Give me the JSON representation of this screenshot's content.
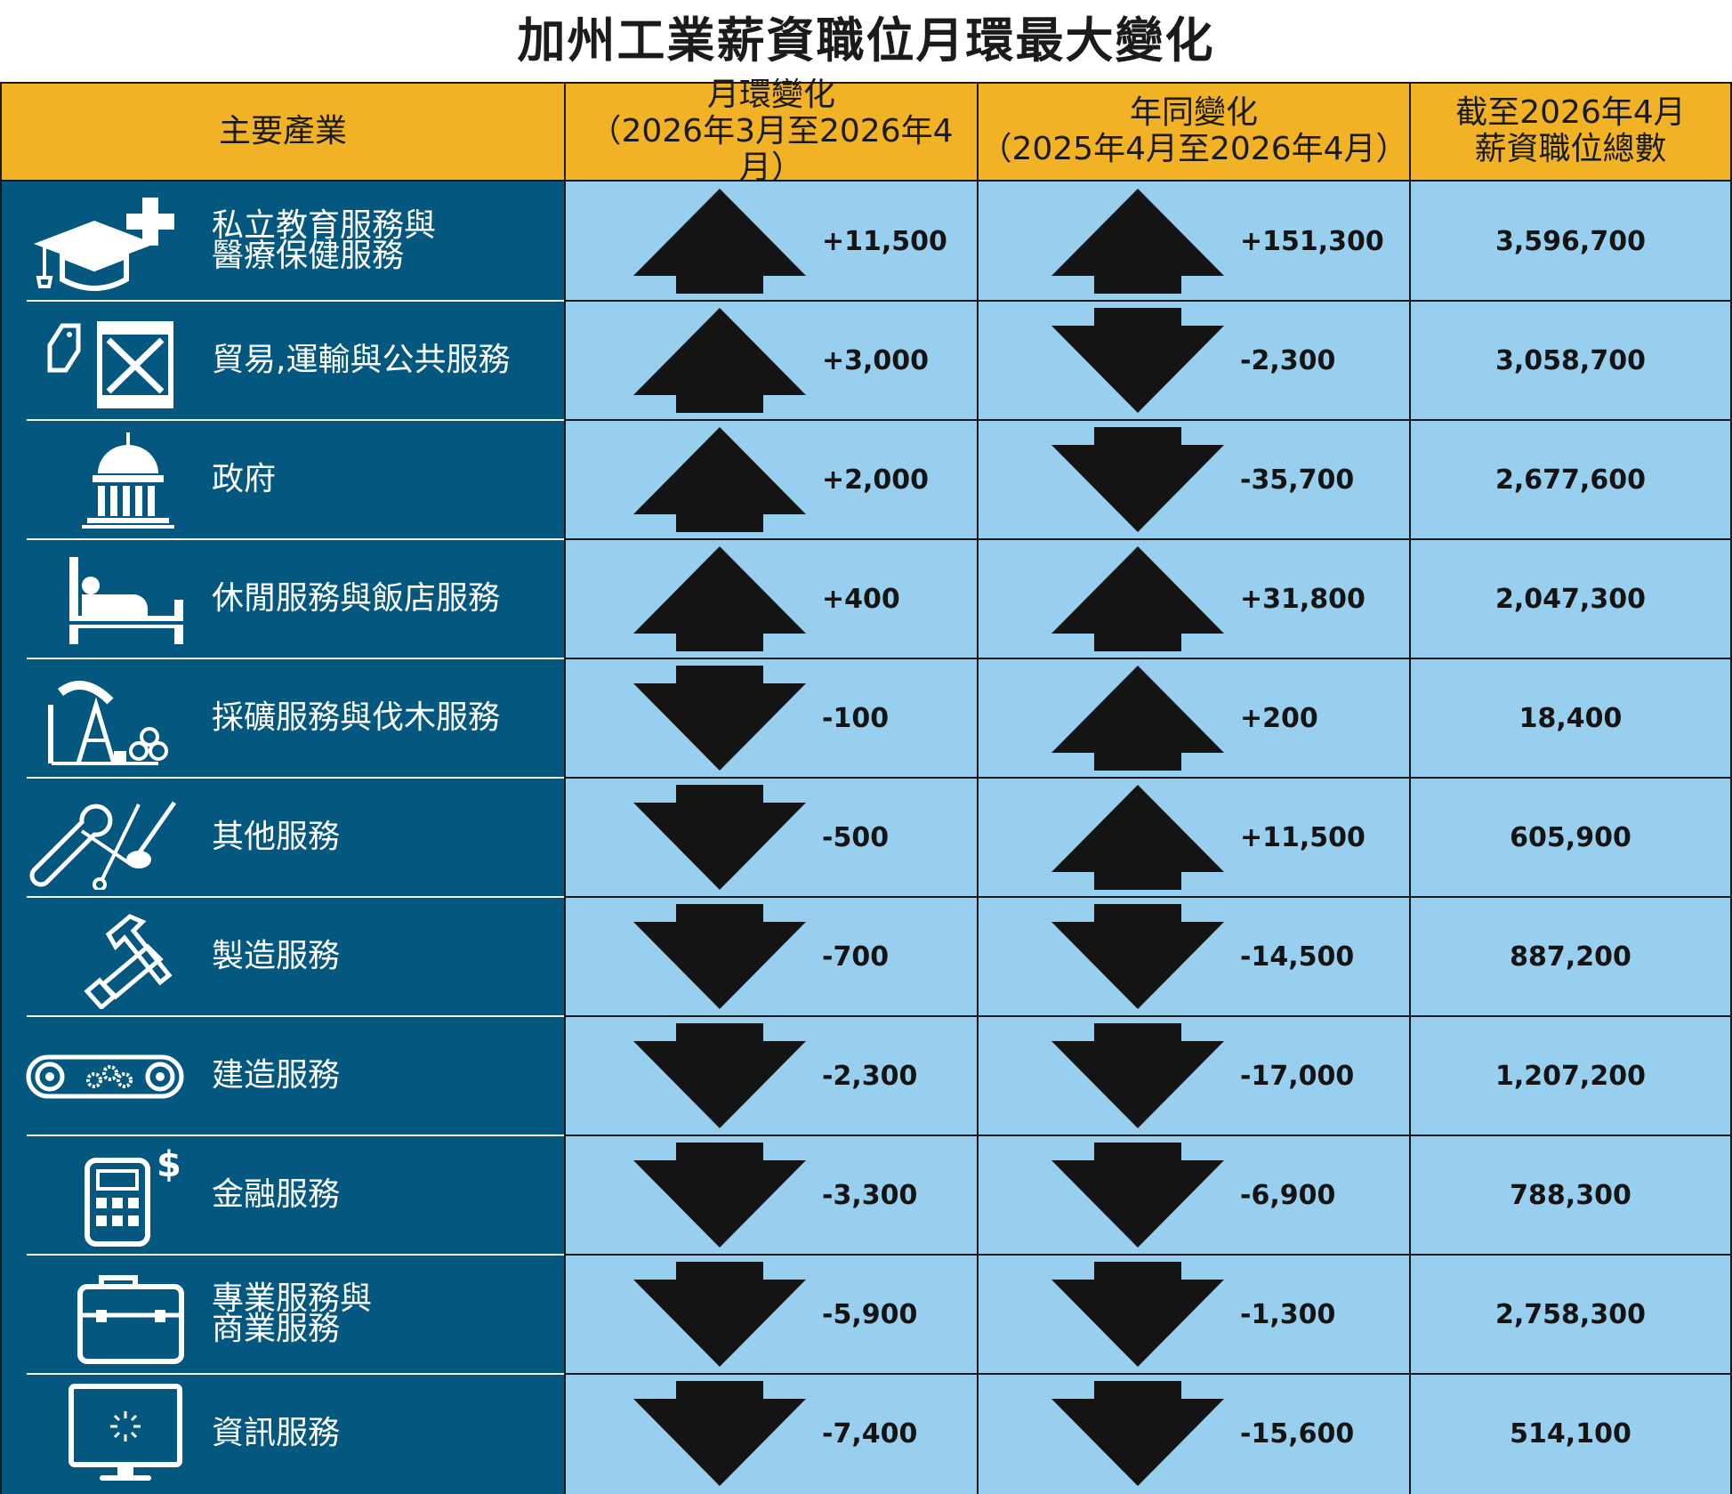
{
  "title": "加州工業薪資職位月環最大變化",
  "headers": {
    "industry": "主要產業",
    "mom_line1": "月環變化",
    "mom_line2": "（2026年3月至2026年4月）",
    "yoy_line1": "年同變化",
    "yoy_line2": "（2025年4月至2026年4月）",
    "total_line1": "截至2026年4月",
    "total_line2": "薪資職位總數"
  },
  "colors": {
    "header_bg": "#F1B226",
    "industry_bg": "#04587F",
    "value_bg": "#98CFEF",
    "arrow": "#141414"
  },
  "rows": [
    {
      "icon": "graduation-cap-medical-cross-icon",
      "industry": "私立教育服務與\n醫療保健服務",
      "mom": "+11,500",
      "mom_dir": "up",
      "yoy": "+151,300",
      "yoy_dir": "up",
      "total": "3,596,700"
    },
    {
      "icon": "shipping-crate-tag-icon",
      "industry": "貿易,運輸與公共服務",
      "mom": "+3,000",
      "mom_dir": "up",
      "yoy": "-2,300",
      "yoy_dir": "down",
      "total": "3,058,700"
    },
    {
      "icon": "government-building-icon",
      "industry": "政府",
      "mom": "+2,000",
      "mom_dir": "up",
      "yoy": "-35,700",
      "yoy_dir": "down",
      "total": "2,677,600"
    },
    {
      "icon": "bed-icon",
      "industry": "休閒服務與飯店服務",
      "mom": "+400",
      "mom_dir": "up",
      "yoy": "+31,800",
      "yoy_dir": "up",
      "total": "2,047,300"
    },
    {
      "icon": "oil-pump-logs-icon",
      "industry": "採礦服務與伐木服務",
      "mom": "-100",
      "mom_dir": "down",
      "yoy": "+200",
      "yoy_dir": "up",
      "total": "18,400"
    },
    {
      "icon": "wrench-scissors-tools-icon",
      "industry": "其他服務",
      "mom": "-500",
      "mom_dir": "down",
      "yoy": "+11,500",
      "yoy_dir": "up",
      "total": "605,900"
    },
    {
      "icon": "hammer-saw-icon",
      "industry": "製造服務",
      "mom": "-700",
      "mom_dir": "down",
      "yoy": "-14,500",
      "yoy_dir": "down",
      "total": "887,200"
    },
    {
      "icon": "conveyor-gears-icon",
      "industry": "建造服務",
      "mom": "-2,300",
      "mom_dir": "down",
      "yoy": "-17,000",
      "yoy_dir": "down",
      "total": "1,207,200"
    },
    {
      "icon": "calculator-dollar-icon",
      "industry": "金融服務",
      "mom": "-3,300",
      "mom_dir": "down",
      "yoy": "-6,900",
      "yoy_dir": "down",
      "total": "788,300"
    },
    {
      "icon": "toolbox-briefcase-icon",
      "industry": "專業服務與\n商業服務",
      "mom": "-5,900",
      "mom_dir": "down",
      "yoy": "-1,300",
      "yoy_dir": "down",
      "total": "2,758,300"
    },
    {
      "icon": "computer-monitor-icon",
      "industry": "資訊服務",
      "mom": "-7,400",
      "mom_dir": "down",
      "yoy": "-15,600",
      "yoy_dir": "down",
      "total": "514,100"
    }
  ]
}
